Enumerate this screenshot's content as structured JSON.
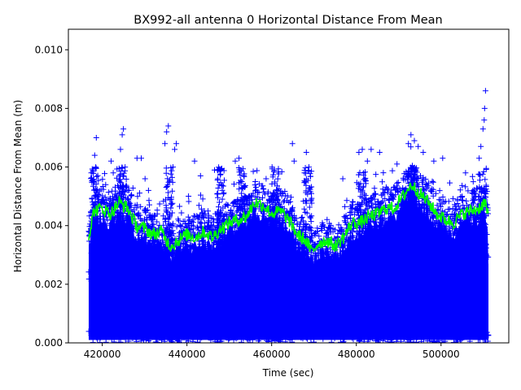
{
  "chart_data": {
    "type": "scatter",
    "title": "BX992-all antenna 0 Horizontal Distance From Mean",
    "xlabel": "Time (sec)",
    "ylabel": "Horizontal Distance From Mean (m)",
    "xlim": [
      412000,
      516000
    ],
    "ylim": [
      0,
      0.0107
    ],
    "grid": false,
    "x_ticks": [
      420000,
      440000,
      460000,
      480000,
      500000
    ],
    "x_tick_labels": [
      "420000",
      "440000",
      "460000",
      "480000",
      "500000"
    ],
    "y_ticks": [
      0.0,
      0.002,
      0.004,
      0.006,
      0.008,
      0.01
    ],
    "y_tick_labels": [
      "0.000",
      "0.002",
      "0.004",
      "0.006",
      "0.008",
      "0.010"
    ],
    "data_x_range": [
      416800,
      511200
    ],
    "series": [
      {
        "kind": "scatter",
        "marker": "plus",
        "color": "#0000ff",
        "outliers": [
          [
            417400,
            0.0058
          ],
          [
            418200,
            0.0064
          ],
          [
            418600,
            0.007
          ],
          [
            420800,
            0.0054
          ],
          [
            422100,
            0.0062
          ],
          [
            422600,
            0.0058
          ],
          [
            424300,
            0.0066
          ],
          [
            424700,
            0.0071
          ],
          [
            425000,
            0.0073
          ],
          [
            425400,
            0.006
          ],
          [
            428200,
            0.0063
          ],
          [
            429200,
            0.0063
          ],
          [
            430100,
            0.0056
          ],
          [
            434800,
            0.0068
          ],
          [
            435200,
            0.0072
          ],
          [
            435600,
            0.0074
          ],
          [
            436700,
            0.006
          ],
          [
            437100,
            0.0066
          ],
          [
            437500,
            0.0068
          ],
          [
            441800,
            0.0062
          ],
          [
            443200,
            0.0057
          ],
          [
            446500,
            0.0059
          ],
          [
            447300,
            0.0056
          ],
          [
            451400,
            0.0062
          ],
          [
            452300,
            0.0063
          ],
          [
            458700,
            0.0056
          ],
          [
            460100,
            0.006
          ],
          [
            464900,
            0.0068
          ],
          [
            465300,
            0.0062
          ],
          [
            468200,
            0.0065
          ],
          [
            468800,
            0.006
          ],
          [
            476800,
            0.0056
          ],
          [
            480600,
            0.0065
          ],
          [
            481400,
            0.0066
          ],
          [
            482600,
            0.0062
          ],
          [
            483500,
            0.0066
          ],
          [
            485500,
            0.0065
          ],
          [
            489600,
            0.0061
          ],
          [
            492300,
            0.0068
          ],
          [
            492900,
            0.0071
          ],
          [
            493700,
            0.0069
          ],
          [
            494600,
            0.0067
          ],
          [
            495800,
            0.0065
          ],
          [
            498300,
            0.0062
          ],
          [
            500400,
            0.0063
          ],
          [
            505800,
            0.0058
          ],
          [
            507600,
            0.0055
          ],
          [
            509000,
            0.0063
          ],
          [
            509400,
            0.0067
          ],
          [
            509900,
            0.0073
          ],
          [
            510200,
            0.0076
          ],
          [
            510300,
            0.008
          ],
          [
            510500,
            0.0086
          ]
        ]
      },
      {
        "kind": "line",
        "color": "#00ff00",
        "points": [
          [
            416800,
            0.0036
          ],
          [
            418000,
            0.0045
          ],
          [
            420000,
            0.0046
          ],
          [
            422000,
            0.0044
          ],
          [
            424000,
            0.0048
          ],
          [
            426000,
            0.0046
          ],
          [
            428000,
            0.004
          ],
          [
            430000,
            0.0039
          ],
          [
            432000,
            0.0037
          ],
          [
            434000,
            0.0038
          ],
          [
            436000,
            0.0033
          ],
          [
            438000,
            0.0035
          ],
          [
            440000,
            0.0037
          ],
          [
            442000,
            0.0036
          ],
          [
            444000,
            0.0038
          ],
          [
            446000,
            0.0036
          ],
          [
            448000,
            0.0039
          ],
          [
            450000,
            0.0041
          ],
          [
            452000,
            0.0042
          ],
          [
            454000,
            0.0043
          ],
          [
            456000,
            0.0048
          ],
          [
            458000,
            0.0047
          ],
          [
            460000,
            0.0044
          ],
          [
            462000,
            0.0045
          ],
          [
            464000,
            0.0042
          ],
          [
            466000,
            0.0037
          ],
          [
            468000,
            0.0035
          ],
          [
            469500,
            0.0031
          ],
          [
            471000,
            0.0034
          ],
          [
            473000,
            0.0035
          ],
          [
            475000,
            0.0033
          ],
          [
            477000,
            0.0036
          ],
          [
            479000,
            0.0041
          ],
          [
            481000,
            0.0041
          ],
          [
            483000,
            0.0043
          ],
          [
            485000,
            0.0044
          ],
          [
            487000,
            0.0046
          ],
          [
            489000,
            0.0046
          ],
          [
            491000,
            0.005
          ],
          [
            493000,
            0.0054
          ],
          [
            495000,
            0.0051
          ],
          [
            497000,
            0.0048
          ],
          [
            499000,
            0.0044
          ],
          [
            501000,
            0.0042
          ],
          [
            503000,
            0.0041
          ],
          [
            505000,
            0.0044
          ],
          [
            507000,
            0.0045
          ],
          [
            509000,
            0.0046
          ],
          [
            510500,
            0.0048
          ],
          [
            511200,
            0.0042
          ]
        ]
      }
    ]
  }
}
